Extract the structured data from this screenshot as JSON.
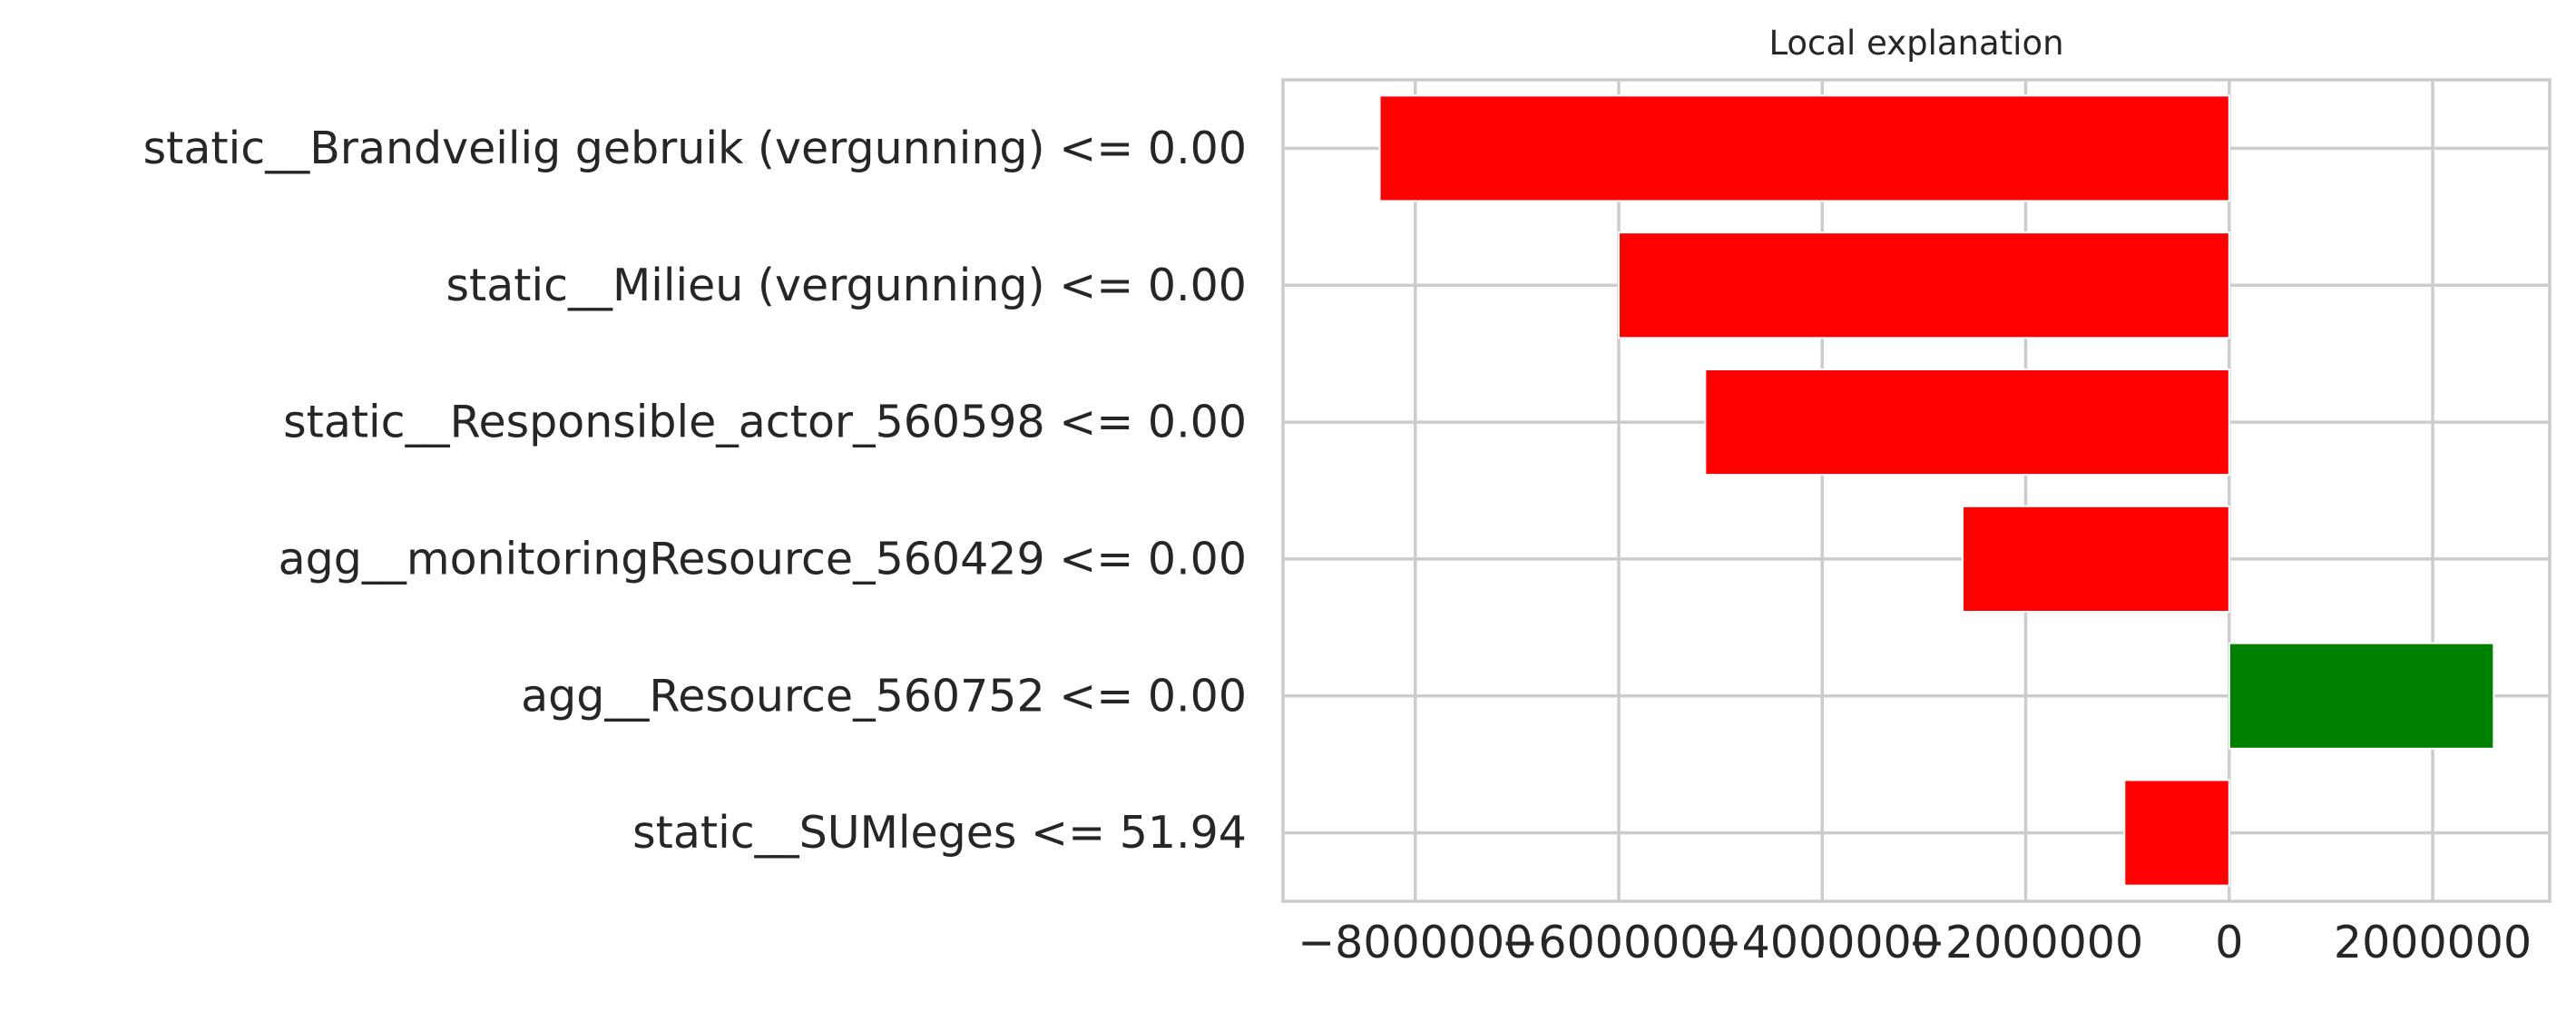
{
  "chart_data": {
    "type": "bar",
    "orientation": "horizontal",
    "title": "Local explanation",
    "xlabel": "",
    "ylabel": "",
    "categories": [
      "static__Brandveilig gebruik (vergunning) <= 0.00",
      "static__Milieu (vergunning) <= 0.00",
      "static__Responsible_actor_560598 <= 0.00",
      "agg__monitoringResource_560429 <= 0.00",
      "agg__Resource_560752 <= 0.00",
      "static__SUMleges <= 51.94"
    ],
    "values": [
      -8350000,
      -6000000,
      -5150000,
      -2620000,
      2600000,
      -1030000
    ],
    "bar_colors": [
      "#ff0000",
      "#ff0000",
      "#ff0000",
      "#ff0000",
      "#008000",
      "#ff0000"
    ],
    "xlim": [
      -9300000,
      3150000
    ],
    "xticks": [
      -8000000,
      -6000000,
      -4000000,
      -2000000,
      0,
      2000000
    ],
    "xtick_labels": [
      "−8000000",
      "−6000000",
      "−4000000",
      "−2000000",
      "0",
      "2000000"
    ],
    "grid": true
  }
}
